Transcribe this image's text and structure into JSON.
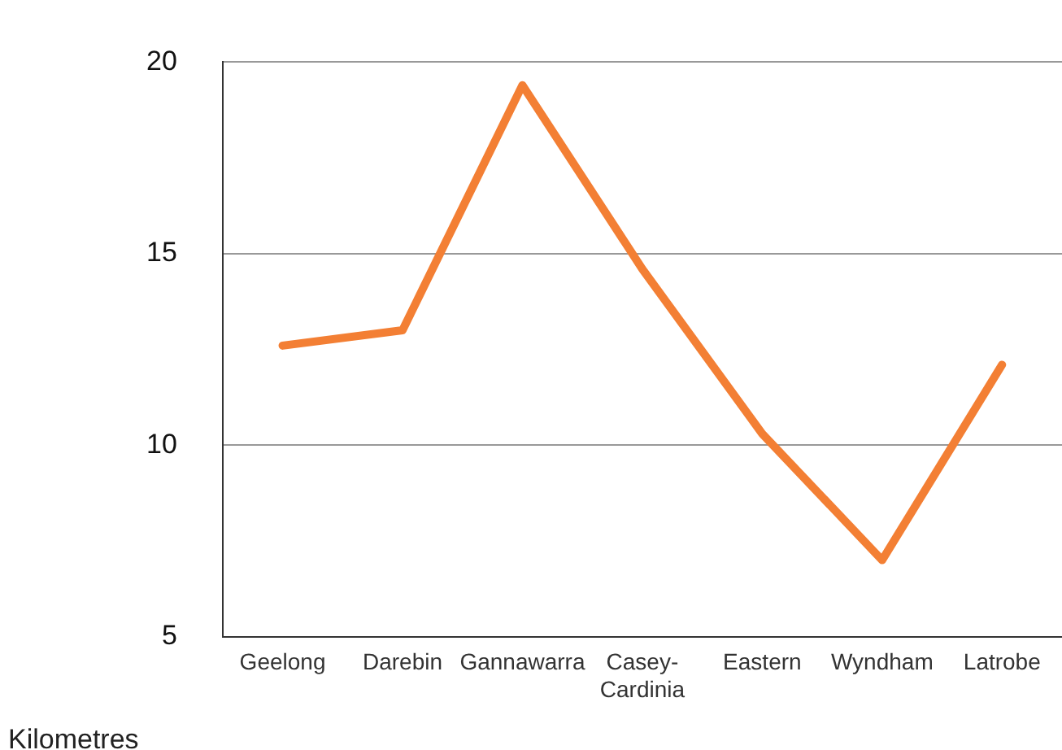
{
  "chart_data": {
    "type": "line",
    "ylabel": "Kilometres",
    "categories": [
      "Geelong",
      "Darebin",
      "Gannawarra",
      "Casey-Cardinia",
      "Eastern",
      "Wyndham",
      "Latrobe"
    ],
    "series": [
      {
        "color": "#f37f34",
        "values": [
          12.6,
          13.0,
          19.4,
          14.6,
          10.3,
          7.0,
          12.1
        ]
      }
    ],
    "ylim": [
      5,
      20
    ],
    "yticks": [
      5,
      10,
      15,
      20
    ],
    "grid": "y",
    "legend": false,
    "marker": "none",
    "line_style": "solid"
  }
}
